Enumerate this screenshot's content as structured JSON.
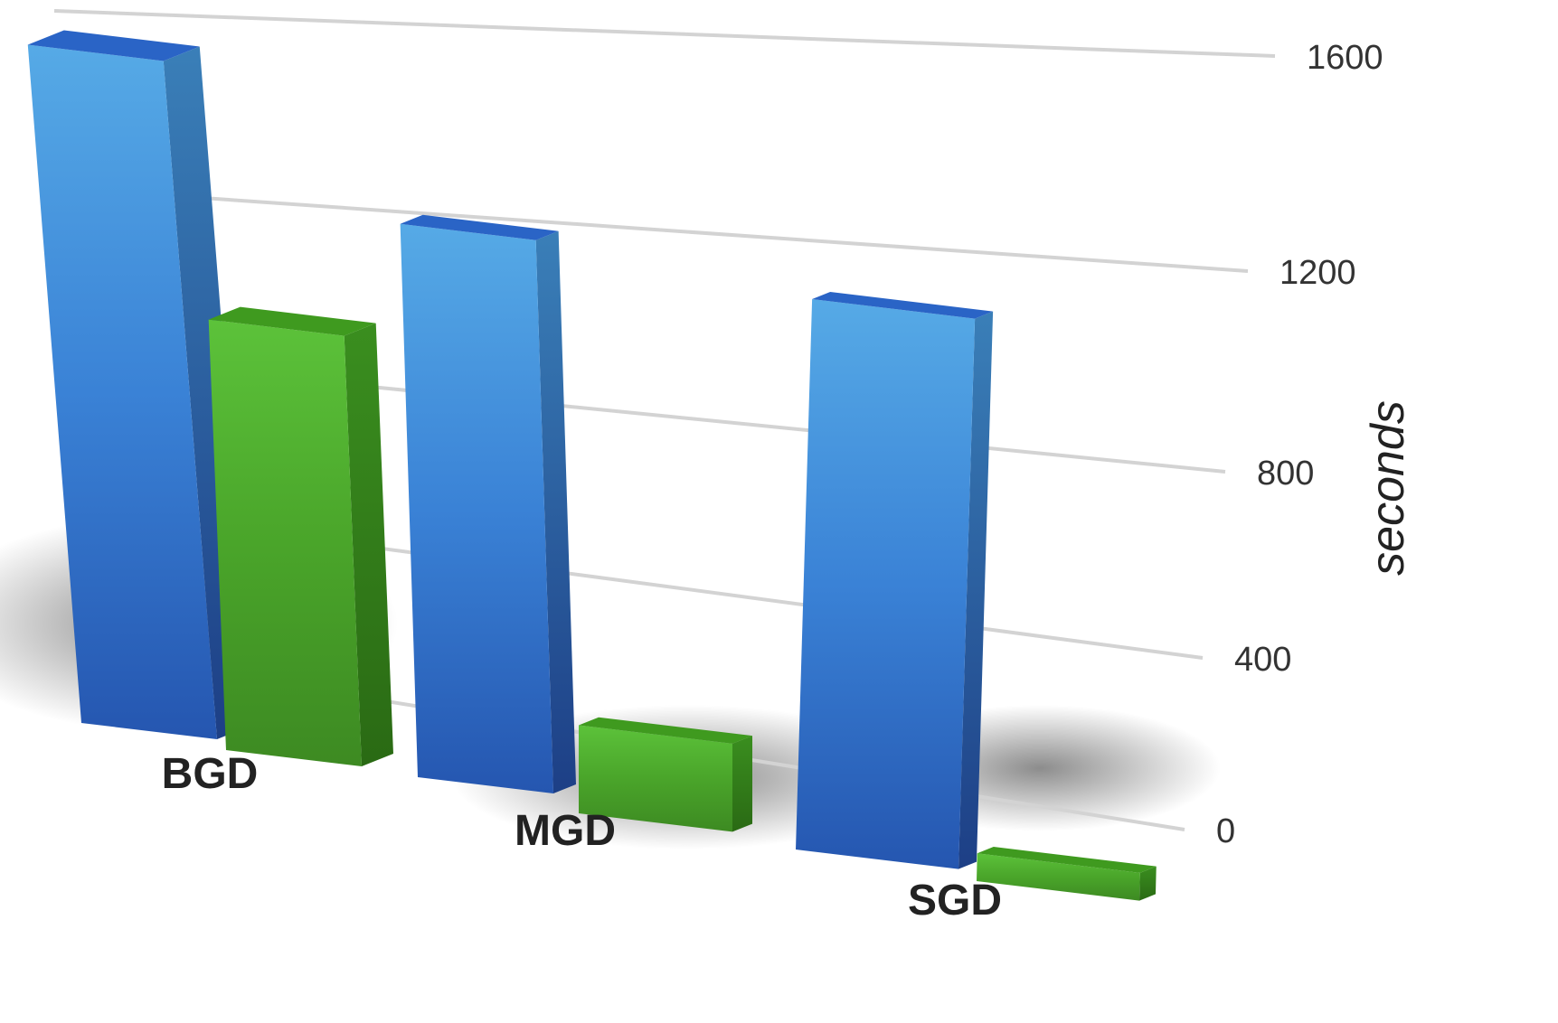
{
  "chart_data": {
    "type": "bar",
    "categories": [
      "BGD",
      "MGD",
      "SGD"
    ],
    "series": [
      {
        "values": [
          1580,
          1240,
          1160
        ]
      },
      {
        "values": [
          1030,
          200,
          60
        ]
      }
    ],
    "ylabel": "seconds",
    "yticks": [
      0,
      400,
      800,
      1200,
      1600
    ],
    "ylim": [
      0,
      1600
    ],
    "grid": true,
    "legend": "none",
    "style": "3d-perspective",
    "colors": {
      "series_0": "#3a82d6",
      "series_1": "#4aa52a",
      "gridline": "#d3d3d3",
      "background": "#ffffff"
    }
  }
}
